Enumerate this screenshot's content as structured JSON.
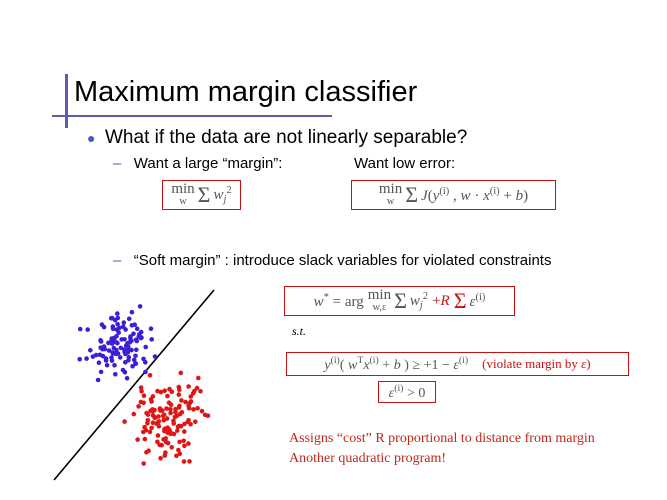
{
  "slide": {
    "title": "Maximum margin classifier",
    "bullet": "What if the data are not linearly separable?",
    "sub1_dash": "–",
    "sub1_left": "Want a large “margin”:",
    "sub1_right": "Want low error:",
    "sub2_dash": "–",
    "sub2_text": "“Soft margin” : introduce slack variables for violated constraints",
    "st_label": "s.t.",
    "note_line1": "Assigns “cost” R proportional to distance from margin",
    "note_line2": "Another quadratic program!"
  },
  "colors": {
    "accent": "#5b5bb0",
    "box_border": "#cc1111",
    "class_a": "#3a1fd6",
    "class_b": "#e01515",
    "note": "#c0281c"
  },
  "equations": {
    "margin_obj": "min_w Σ_j w_j^2",
    "error_obj": "min_w Σ_i J(y^(i) , w · x^(i) + b)",
    "soft_obj": "w* = arg min_{w,ε} Σ_j w_j^2 + R Σ_i ε^(i)",
    "constraint": "y^(i) ( w^T x^(i) + b ) ≥ +1 − ε^(i)   (violate margin by ε)",
    "slack": "ε^(i) > 0"
  },
  "scatter": {
    "class_a_count": 110,
    "class_b_count": 130
  }
}
